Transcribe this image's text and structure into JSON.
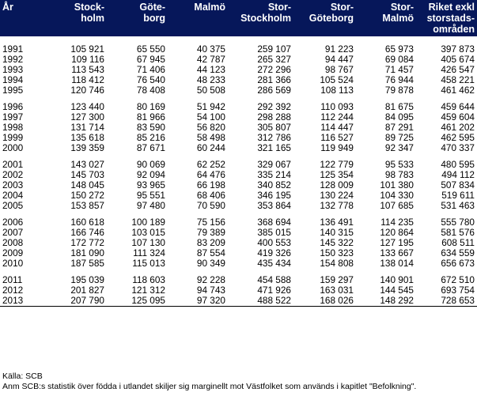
{
  "table": {
    "headers": [
      "År",
      "Stock-\nholm",
      "Göte-\nborg",
      "Malmö",
      "Stor-\nStockholm",
      "Stor-\nGöteborg",
      "Stor-\nMalmö",
      "Riket exkl\nstorstads-\nområden"
    ],
    "groups": [
      [
        [
          "1991",
          "105 921",
          "65 550",
          "40 375",
          "259 107",
          "91 223",
          "65 973",
          "397 873"
        ],
        [
          "1992",
          "109 116",
          "67 945",
          "42 787",
          "265 327",
          "94 447",
          "69 084",
          "405 674"
        ],
        [
          "1993",
          "113 543",
          "71 406",
          "44 123",
          "272 296",
          "98 767",
          "71 457",
          "426 547"
        ],
        [
          "1994",
          "118 412",
          "76 540",
          "48 233",
          "281 366",
          "105 524",
          "76 944",
          "458 221"
        ],
        [
          "1995",
          "120 746",
          "78 408",
          "50 508",
          "286 569",
          "108 113",
          "79 878",
          "461 462"
        ]
      ],
      [
        [
          "1996",
          "123 440",
          "80 169",
          "51 942",
          "292 392",
          "110 093",
          "81 675",
          "459 644"
        ],
        [
          "1997",
          "127 300",
          "81 966",
          "54 100",
          "298 288",
          "112 244",
          "84 095",
          "459 604"
        ],
        [
          "1998",
          "131 714",
          "83 590",
          "56 820",
          "305 807",
          "114 447",
          "87 291",
          "461 202"
        ],
        [
          "1999",
          "135 618",
          "85 216",
          "58 498",
          "312 786",
          "116 527",
          "89 725",
          "462 595"
        ],
        [
          "2000",
          "139 359",
          "87 671",
          "60 244",
          "321 165",
          "119 949",
          "92 347",
          "470 337"
        ]
      ],
      [
        [
          "2001",
          "143 027",
          "90 069",
          "62 252",
          "329 067",
          "122 779",
          "95 533",
          "480 595"
        ],
        [
          "2002",
          "145 703",
          "92 094",
          "64 476",
          "335 214",
          "125 354",
          "98 783",
          "494 112"
        ],
        [
          "2003",
          "148 045",
          "93 965",
          "66 198",
          "340 852",
          "128 009",
          "101 380",
          "507 834"
        ],
        [
          "2004",
          "150 272",
          "95 551",
          "68 406",
          "346 195",
          "130 224",
          "104 330",
          "519 611"
        ],
        [
          "2005",
          "153 857",
          "97 480",
          "70 590",
          "353 864",
          "132 778",
          "107 685",
          "531 463"
        ]
      ],
      [
        [
          "2006",
          "160 618",
          "100 189",
          "75 156",
          "368 694",
          "136 491",
          "114 235",
          "555 780"
        ],
        [
          "2007",
          "166 746",
          "103 015",
          "79 389",
          "385 015",
          "140 315",
          "120 864",
          "581 576"
        ],
        [
          "2008",
          "172 772",
          "107 130",
          "83 209",
          "400 553",
          "145 322",
          "127 195",
          "608 511"
        ],
        [
          "2009",
          "181 090",
          "111 324",
          "87 554",
          "419 326",
          "150 323",
          "133 667",
          "634 559"
        ],
        [
          "2010",
          "187 585",
          "115 013",
          "90 349",
          "435 434",
          "154 808",
          "138 014",
          "656 673"
        ]
      ],
      [
        [
          "2011",
          "195 039",
          "118 603",
          "92 228",
          "454 588",
          "159 297",
          "140 901",
          "672 510"
        ],
        [
          "2012",
          "201 827",
          "121 312",
          "94 743",
          "471 926",
          "163 031",
          "144 545",
          "693 754"
        ],
        [
          "2013",
          "207 790",
          "125 095",
          "97 320",
          "488 522",
          "168 026",
          "148 292",
          "728 653"
        ]
      ]
    ]
  },
  "notes": {
    "source": "Källa:  SCB",
    "remark": "Anm SCB:s statistik över födda i utlandet skiljer sig marginellt mot Västfolket som används i kapitlet \"Befolkning\"."
  }
}
